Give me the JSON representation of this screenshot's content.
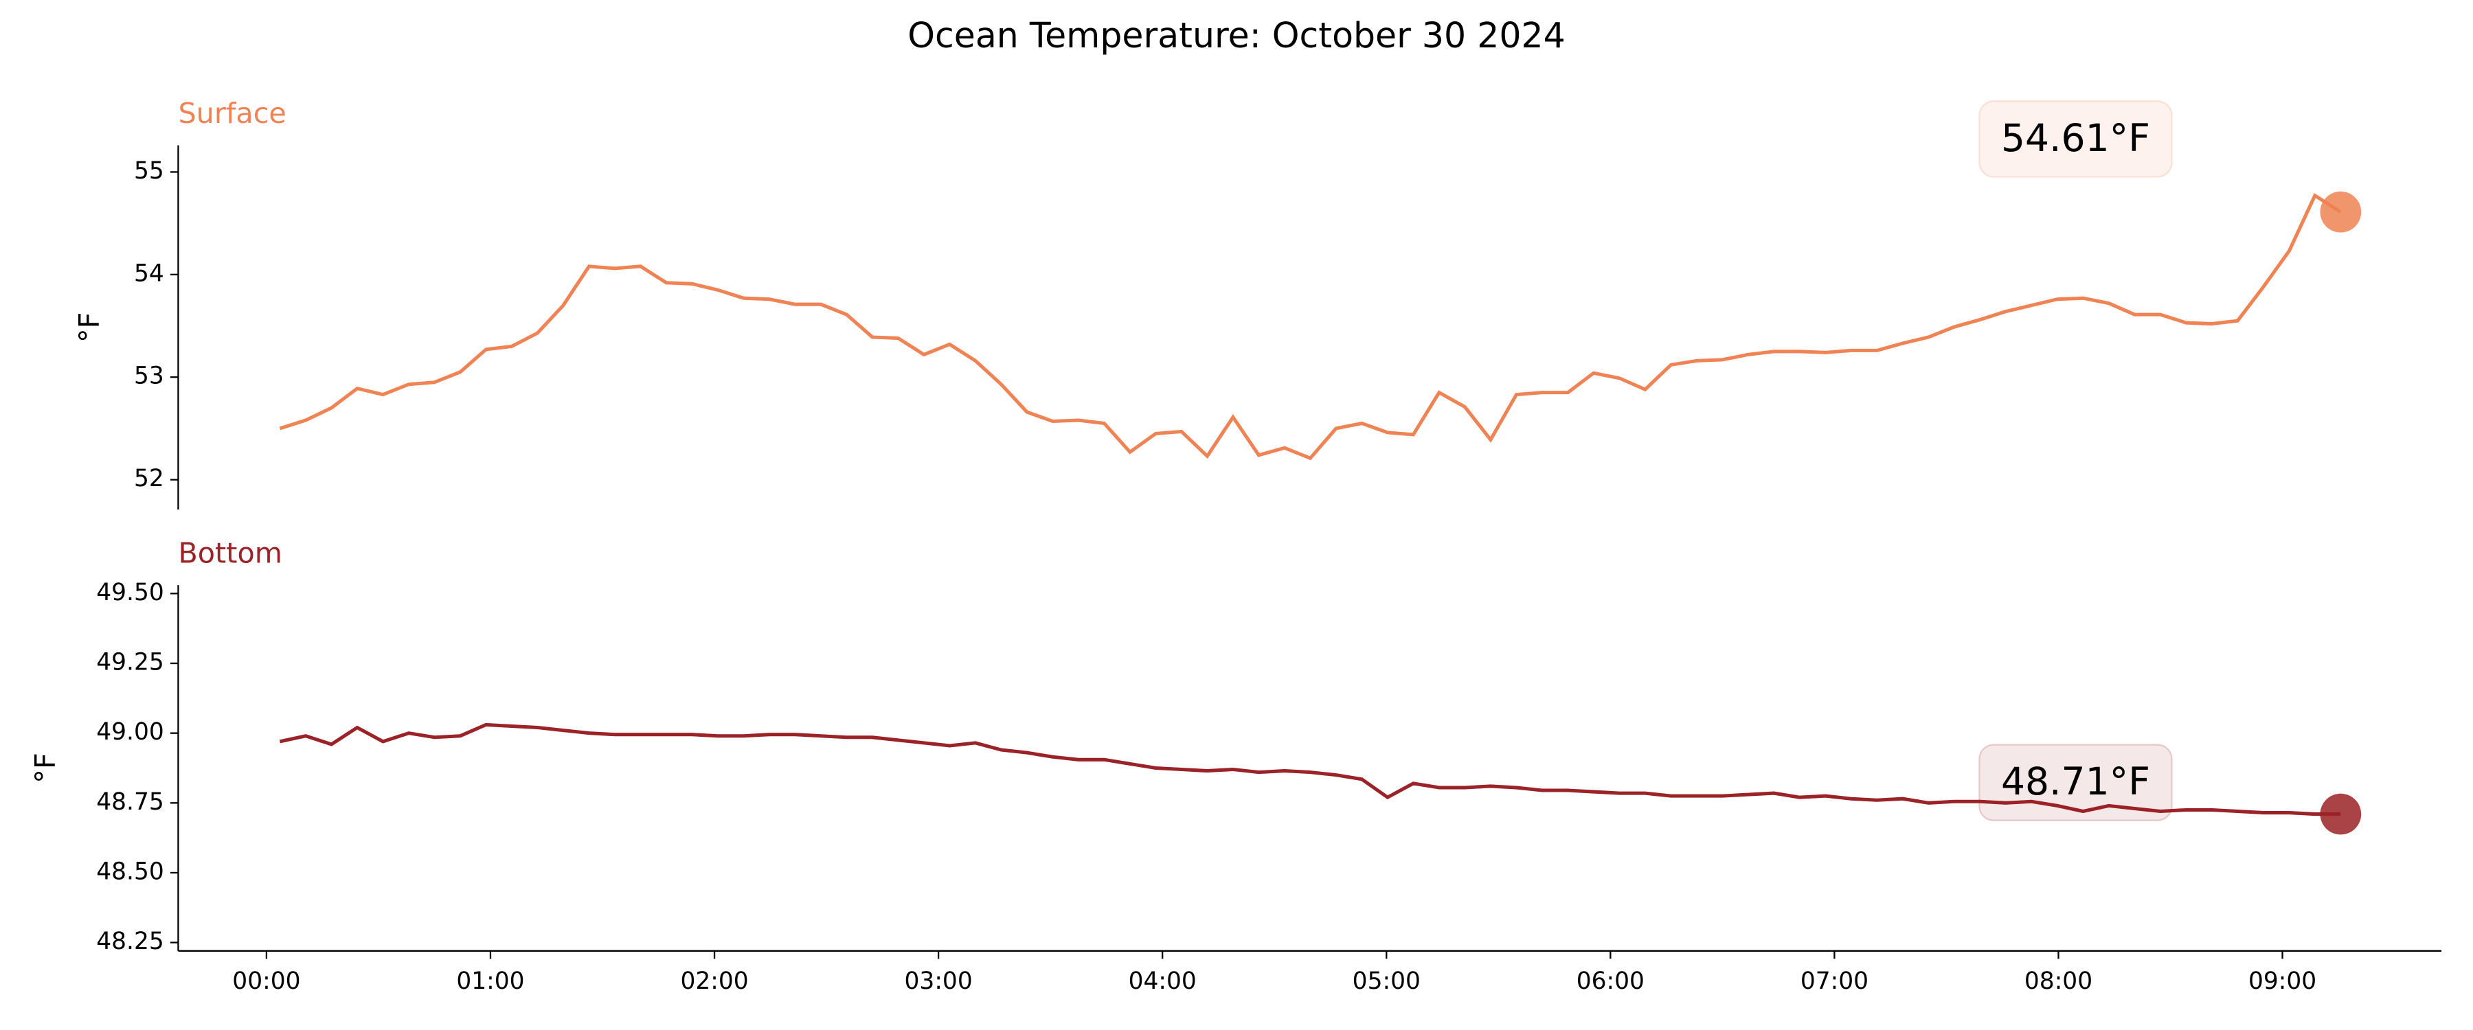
{
  "title": "Ocean Temperature: October 30 2024",
  "chart_data": [
    {
      "type": "line",
      "title": "Surface",
      "ylabel": "°F",
      "annotation": "54.61°F",
      "x": [
        0.06,
        0.175,
        0.29,
        0.405,
        0.52,
        0.635,
        0.75,
        0.865,
        0.98,
        1.095,
        1.21,
        1.325,
        1.44,
        1.555,
        1.67,
        1.785,
        1.9,
        2.015,
        2.13,
        2.245,
        2.36,
        2.475,
        2.59,
        2.705,
        2.82,
        2.935,
        3.05,
        3.165,
        3.28,
        3.395,
        3.51,
        3.625,
        3.74,
        3.855,
        3.97,
        4.085,
        4.2,
        4.315,
        4.43,
        4.545,
        4.66,
        4.775,
        4.89,
        5.005,
        5.12,
        5.235,
        5.35,
        5.465,
        5.58,
        5.695,
        5.81,
        5.925,
        6.04,
        6.155,
        6.27,
        6.385,
        6.5,
        6.615,
        6.73,
        6.845,
        6.96,
        7.075,
        7.19,
        7.305,
        7.42,
        7.535,
        7.65,
        7.765,
        7.88,
        7.995,
        8.11,
        8.225,
        8.34,
        8.455,
        8.57,
        8.685,
        8.8,
        8.915,
        9.03,
        9.145,
        9.26
      ],
      "series": [
        {
          "color": "#ef8354",
          "values": [
            52.5,
            52.58,
            52.7,
            52.89,
            52.83,
            52.93,
            52.95,
            53.05,
            53.27,
            53.3,
            53.43,
            53.7,
            54.08,
            54.06,
            54.08,
            53.92,
            53.91,
            53.85,
            53.77,
            53.76,
            53.71,
            53.71,
            53.61,
            53.39,
            53.38,
            53.22,
            53.32,
            53.16,
            52.93,
            52.66,
            52.57,
            52.58,
            52.55,
            52.27,
            52.45,
            52.47,
            52.23,
            52.61,
            52.24,
            52.31,
            52.21,
            52.5,
            52.55,
            52.46,
            52.44,
            52.85,
            52.71,
            52.39,
            52.83,
            52.85,
            52.85,
            53.04,
            52.99,
            52.88,
            53.12,
            53.16,
            53.17,
            53.22,
            53.25,
            53.25,
            53.24,
            53.26,
            53.26,
            53.33,
            53.39,
            53.49,
            53.56,
            53.64,
            53.7,
            53.76,
            53.77,
            53.72,
            53.61,
            53.61,
            53.53,
            53.52,
            53.55,
            53.88,
            54.23,
            54.77,
            54.61
          ]
        }
      ],
      "xlim": [
        -0.394,
        9.71
      ],
      "ylim": [
        51.71,
        55.26
      ],
      "yticks": [
        52,
        53,
        54,
        55
      ]
    },
    {
      "type": "line",
      "title": "Bottom",
      "ylabel": "°F",
      "annotation": "48.71°F",
      "x": [
        0.06,
        0.175,
        0.29,
        0.405,
        0.52,
        0.635,
        0.75,
        0.865,
        0.98,
        1.095,
        1.21,
        1.325,
        1.44,
        1.555,
        1.67,
        1.785,
        1.9,
        2.015,
        2.13,
        2.245,
        2.36,
        2.475,
        2.59,
        2.705,
        2.82,
        2.935,
        3.05,
        3.165,
        3.28,
        3.395,
        3.51,
        3.625,
        3.74,
        3.855,
        3.97,
        4.085,
        4.2,
        4.315,
        4.43,
        4.545,
        4.66,
        4.775,
        4.89,
        5.005,
        5.12,
        5.235,
        5.35,
        5.465,
        5.58,
        5.695,
        5.81,
        5.925,
        6.04,
        6.155,
        6.27,
        6.385,
        6.5,
        6.615,
        6.73,
        6.845,
        6.96,
        7.075,
        7.19,
        7.305,
        7.42,
        7.535,
        7.65,
        7.765,
        7.88,
        7.995,
        8.11,
        8.225,
        8.34,
        8.455,
        8.57,
        8.685,
        8.8,
        8.915,
        9.03,
        9.145,
        9.26
      ],
      "series": [
        {
          "color": "#9b2226",
          "values": [
            48.97,
            48.99,
            48.96,
            49.02,
            48.97,
            49.0,
            48.985,
            48.99,
            49.03,
            49.025,
            49.02,
            49.01,
            49.0,
            48.995,
            48.995,
            48.995,
            48.995,
            48.99,
            48.99,
            48.995,
            48.995,
            48.99,
            48.985,
            48.985,
            48.975,
            48.965,
            48.955,
            48.965,
            48.94,
            48.93,
            48.915,
            48.905,
            48.905,
            48.89,
            48.875,
            48.87,
            48.865,
            48.87,
            48.86,
            48.865,
            48.86,
            48.85,
            48.835,
            48.77,
            48.82,
            48.805,
            48.805,
            48.81,
            48.805,
            48.795,
            48.795,
            48.79,
            48.785,
            48.785,
            48.775,
            48.775,
            48.775,
            48.78,
            48.785,
            48.77,
            48.775,
            48.765,
            48.76,
            48.765,
            48.75,
            48.755,
            48.755,
            48.75,
            48.755,
            48.74,
            48.72,
            48.74,
            48.73,
            48.72,
            48.725,
            48.725,
            48.72,
            48.715,
            48.715,
            48.71,
            48.71
          ]
        }
      ],
      "xlim": [
        -0.394,
        9.71
      ],
      "ylim": [
        48.22,
        49.53
      ],
      "yticks": [
        {
          "value": 48.25,
          "label": "48.25"
        },
        {
          "value": 48.5,
          "label": "48.50"
        },
        {
          "value": 48.75,
          "label": "48.75"
        },
        {
          "value": 49,
          "label": "49.00"
        },
        {
          "value": 49.25,
          "label": "49.25"
        },
        {
          "value": 49.5,
          "label": "49.50"
        }
      ],
      "xticks": [
        {
          "value": 0,
          "label": "00:00"
        },
        {
          "value": 1,
          "label": "01:00"
        },
        {
          "value": 2,
          "label": "02:00"
        },
        {
          "value": 3,
          "label": "03:00"
        },
        {
          "value": 4,
          "label": "04:00"
        },
        {
          "value": 5,
          "label": "05:00"
        },
        {
          "value": 6,
          "label": "06:00"
        },
        {
          "value": 7,
          "label": "07:00"
        },
        {
          "value": 8,
          "label": "08:00"
        },
        {
          "value": 9,
          "label": "09:00"
        }
      ]
    }
  ]
}
